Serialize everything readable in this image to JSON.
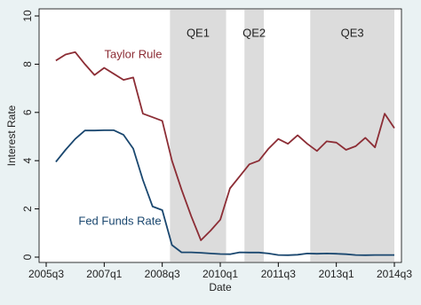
{
  "chart_data": {
    "type": "line",
    "x_label": "Date",
    "y_label": "Interest Rate",
    "categories": [
      "2005q3",
      null,
      null,
      null,
      null,
      null,
      "2007q1",
      null,
      null,
      null,
      null,
      null,
      "2008q3",
      null,
      null,
      null,
      null,
      null,
      "2010q1",
      null,
      null,
      null,
      null,
      null,
      "2011q3",
      null,
      null,
      null,
      null,
      null,
      "2013q1",
      null,
      null,
      null,
      null,
      null,
      "2014q3"
    ],
    "ylim": [
      0,
      10
    ],
    "yticks": [
      0,
      2,
      4,
      6,
      8,
      10
    ],
    "grid": false,
    "shaded_regions": [
      {
        "label": "QE1",
        "x": [
          12.8,
          18.6
        ]
      },
      {
        "label": "QE2",
        "x": [
          20.5,
          22.5
        ]
      },
      {
        "label": "QE3",
        "x": [
          27.3,
          36
        ]
      }
    ],
    "series": [
      {
        "name": "Taylor Rule",
        "color": "#8c2d35",
        "values": [
          null,
          8.15,
          8.4,
          8.5,
          8.0,
          7.55,
          7.85,
          7.6,
          7.35,
          7.45,
          5.95,
          5.8,
          5.65,
          4.0,
          2.8,
          1.7,
          0.7,
          1.1,
          1.55,
          2.85,
          3.35,
          3.85,
          4.0,
          4.5,
          4.9,
          4.7,
          5.05,
          4.7,
          4.4,
          4.8,
          4.75,
          4.45,
          4.6,
          4.95,
          4.55,
          5.95,
          5.35
        ]
      },
      {
        "name": "Fed Funds Rate",
        "color": "#1a476f",
        "values": [
          null,
          3.95,
          4.45,
          4.9,
          5.25,
          5.25,
          5.26,
          5.26,
          5.07,
          4.5,
          3.2,
          2.1,
          1.95,
          0.5,
          0.2,
          0.2,
          0.18,
          0.15,
          0.13,
          0.12,
          0.2,
          0.19,
          0.19,
          0.15,
          0.09,
          0.08,
          0.1,
          0.15,
          0.14,
          0.15,
          0.14,
          0.12,
          0.09,
          0.08,
          0.09,
          0.09,
          0.09
        ]
      }
    ]
  }
}
